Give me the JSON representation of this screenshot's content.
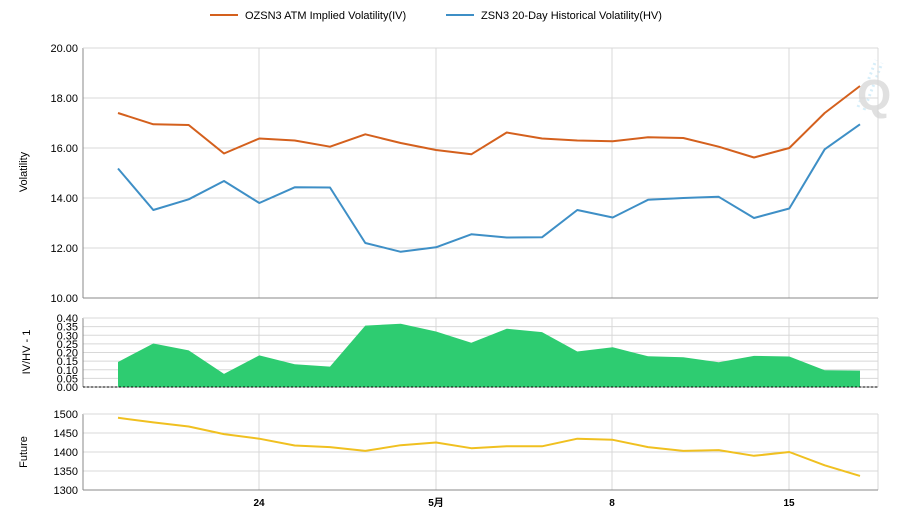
{
  "legend": [
    {
      "key": "iv",
      "label": "OZSN3 ATM Implied Volatility(IV)",
      "color": "#d4601d"
    },
    {
      "key": "hv",
      "label": "ZSN3 20-Day Historical Volatility(HV)",
      "color": "#3e8fc6"
    }
  ],
  "watermark": "Q",
  "x_labels": [
    "24",
    "5月",
    "8",
    "15"
  ],
  "colors": {
    "iv": "#d4601d",
    "hv": "#3e8fc6",
    "ratio_fill": "#2ecc71",
    "future": "#f0c020",
    "grid": "#d8d8d8",
    "axis": "#888888"
  },
  "chart_data": [
    {
      "type": "line",
      "ylabel": "Volatility",
      "ylim": [
        10,
        20
      ],
      "yticks": [
        "10.00",
        "12.00",
        "14.00",
        "16.00",
        "18.00",
        "20.00"
      ],
      "x": [
        1,
        2,
        3,
        4,
        5,
        6,
        7,
        8,
        9,
        10,
        11,
        12,
        13,
        14,
        15,
        16,
        17,
        18,
        19,
        20,
        21,
        22
      ],
      "series": [
        {
          "name": "OZSN3 ATM Implied Volatility(IV)",
          "values": [
            17.4,
            16.95,
            16.92,
            15.78,
            16.38,
            16.3,
            16.05,
            16.55,
            16.2,
            15.92,
            15.75,
            16.62,
            16.38,
            16.3,
            16.27,
            16.43,
            16.4,
            16.05,
            15.62,
            16.0,
            17.4,
            18.48
          ]
        },
        {
          "name": "ZSN3 20-Day Historical Volatility(HV)",
          "values": [
            15.18,
            13.52,
            13.95,
            14.68,
            13.8,
            14.43,
            14.42,
            12.2,
            11.85,
            12.03,
            12.55,
            12.42,
            12.43,
            13.52,
            13.22,
            13.93,
            14.0,
            14.05,
            13.2,
            13.58,
            15.95,
            16.95
          ]
        }
      ],
      "legend_position": "top-center",
      "grid": true
    },
    {
      "type": "area",
      "ylabel": "IV/HV - 1",
      "ylim": [
        0,
        0.4
      ],
      "yticks": [
        "0.00",
        "0.05",
        "0.10",
        "0.15",
        "0.20",
        "0.25",
        "0.30",
        "0.35",
        "0.40"
      ],
      "x": [
        1,
        2,
        3,
        4,
        5,
        6,
        7,
        8,
        9,
        10,
        11,
        12,
        13,
        14,
        15,
        16,
        17,
        18,
        19,
        20,
        21,
        22
      ],
      "values": [
        0.145,
        0.252,
        0.212,
        0.076,
        0.183,
        0.132,
        0.118,
        0.356,
        0.367,
        0.322,
        0.256,
        0.338,
        0.318,
        0.206,
        0.23,
        0.178,
        0.172,
        0.143,
        0.18,
        0.177,
        0.097,
        0.095
      ],
      "grid": true
    },
    {
      "type": "line",
      "ylabel": "Future",
      "ylim": [
        1300,
        1500
      ],
      "yticks": [
        "1300",
        "1350",
        "1400",
        "1450",
        "1500"
      ],
      "x": [
        1,
        2,
        3,
        4,
        5,
        6,
        7,
        8,
        9,
        10,
        11,
        12,
        13,
        14,
        15,
        16,
        17,
        18,
        19,
        20,
        21,
        22
      ],
      "values": [
        1490,
        1478,
        1467,
        1447,
        1435,
        1417,
        1413,
        1403,
        1418,
        1425,
        1410,
        1415,
        1415,
        1435,
        1432,
        1413,
        1403,
        1405,
        1390,
        1400,
        1365,
        1337
      ],
      "grid": true
    }
  ]
}
